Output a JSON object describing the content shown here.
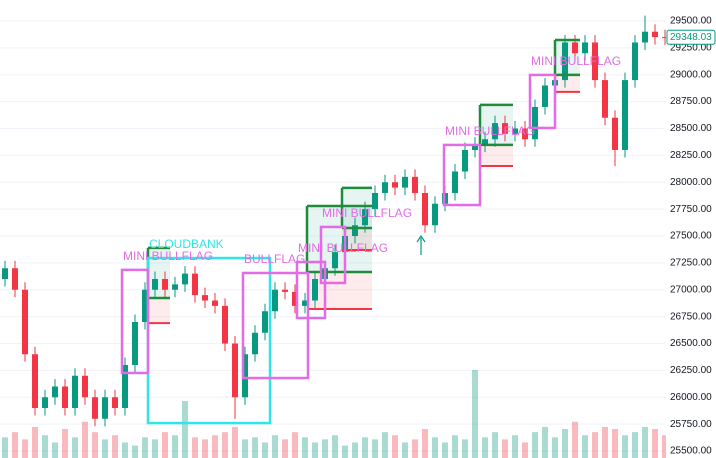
{
  "chart_data": {
    "type": "candlestick",
    "open": [
      27100,
      27200,
      27000,
      26400,
      25900,
      26000,
      26100,
      25900,
      26200,
      26000,
      25800,
      26000,
      25900,
      26300,
      26700,
      27000,
      27100,
      27000,
      27050,
      27150,
      26950,
      26900,
      26850,
      26500,
      26000,
      26400,
      26600,
      26800,
      27000,
      26980,
      26850,
      26900,
      27100,
      27200,
      27350,
      27500,
      27600,
      27750,
      27900,
      28000,
      27950,
      28050,
      27900,
      27600,
      27800,
      27900,
      28100,
      28300,
      28350,
      28400,
      28550,
      28450,
      28500,
      28400,
      28700,
      28900,
      28950,
      29300,
      29200,
      29300,
      28950,
      28600,
      28300,
      28950,
      29300,
      29400,
      29350
    ],
    "high": [
      27270,
      27270,
      27070,
      26470,
      26070,
      26170,
      26170,
      26270,
      26270,
      26070,
      26070,
      26070,
      26370,
      26770,
      27070,
      27170,
      27170,
      27120,
      27220,
      27220,
      27020,
      26970,
      26920,
      26570,
      26470,
      26670,
      26870,
      27070,
      27070,
      27050,
      26970,
      27170,
      27270,
      27420,
      27570,
      27670,
      27820,
      27970,
      28070,
      28070,
      28120,
      28120,
      27970,
      27870,
      27970,
      28170,
      28370,
      28420,
      28470,
      28620,
      28620,
      28570,
      28570,
      28770,
      28970,
      29020,
      29370,
      29370,
      29370,
      29370,
      29020,
      28670,
      29020,
      29370,
      29550,
      29470,
      29420
    ],
    "low": [
      27030,
      26930,
      26330,
      25830,
      25830,
      25930,
      25830,
      25830,
      25930,
      25730,
      25730,
      25830,
      25830,
      26230,
      26630,
      26930,
      26930,
      26930,
      26980,
      26880,
      26830,
      26780,
      26430,
      25800,
      25930,
      26330,
      26530,
      26730,
      26910,
      26780,
      26780,
      26830,
      27030,
      27130,
      27280,
      27430,
      27530,
      27680,
      27830,
      27880,
      27880,
      27830,
      27530,
      27530,
      27730,
      27830,
      28030,
      28230,
      28280,
      28330,
      28380,
      28380,
      28330,
      28330,
      28630,
      28830,
      28880,
      29130,
      29130,
      28880,
      28530,
      28150,
      28230,
      28880,
      29230,
      29280,
      29278
    ],
    "close": [
      27200,
      27000,
      26400,
      25900,
      26000,
      26100,
      25900,
      26200,
      26000,
      25800,
      26000,
      25900,
      26300,
      26700,
      27000,
      27100,
      27000,
      27050,
      27150,
      26950,
      26900,
      26850,
      26500,
      26000,
      26400,
      26600,
      26800,
      27000,
      26980,
      26850,
      26900,
      27100,
      27200,
      27350,
      27500,
      27600,
      27750,
      27900,
      28000,
      27950,
      28050,
      27900,
      27600,
      27800,
      27900,
      28100,
      28300,
      28350,
      28400,
      28550,
      28450,
      28500,
      28400,
      28700,
      28900,
      28950,
      29300,
      29200,
      29300,
      28950,
      28600,
      28300,
      28950,
      29300,
      29400,
      29350,
      29348.03
    ],
    "volume": [
      20,
      25,
      18,
      30,
      22,
      15,
      28,
      20,
      35,
      25,
      18,
      22,
      15,
      12,
      20,
      18,
      25,
      22,
      55,
      20,
      18,
      22,
      25,
      30,
      18,
      20,
      15,
      22,
      18,
      25,
      20,
      15,
      18,
      22,
      12,
      15,
      20,
      18,
      25,
      22,
      15,
      18,
      28,
      20,
      15,
      22,
      18,
      85,
      20,
      25,
      18,
      22,
      15,
      25,
      30,
      20,
      28,
      35,
      22,
      25,
      30,
      28,
      22,
      25,
      30,
      28,
      22
    ],
    "up_color": "#089981",
    "down_color": "#f23645",
    "last_price": 29348.03,
    "ylim": [
      25435,
      29695
    ],
    "yticks": [
      {
        "value": 25500,
        "label": "25500.00"
      },
      {
        "value": 25750,
        "label": "25750.00"
      },
      {
        "value": 26000,
        "label": "26000.00"
      },
      {
        "value": 26250,
        "label": "26250.00"
      },
      {
        "value": 26500,
        "label": "26500.00"
      },
      {
        "value": 26750,
        "label": "26750.00"
      },
      {
        "value": 27000,
        "label": "27000.00"
      },
      {
        "value": 27250,
        "label": "27250.00"
      },
      {
        "value": 27500,
        "label": "27500.00"
      },
      {
        "value": 27750,
        "label": "27750.00"
      },
      {
        "value": 28000,
        "label": "28000.00"
      },
      {
        "value": 28250,
        "label": "28250.00"
      },
      {
        "value": 28500,
        "label": "28500.00"
      },
      {
        "value": 28750,
        "label": "28750.00"
      },
      {
        "value": 29000,
        "label": "29000.00"
      },
      {
        "value": 29250,
        "label": "29250.00"
      },
      {
        "value": 29500,
        "label": "29500.00"
      }
    ],
    "grid": true,
    "boxes": [
      {
        "label": "CLOUDBANK",
        "color": "#2ee6e6",
        "from": 14.3,
        "to": 26.5,
        "top": 27295,
        "bottom": 25760
      },
      {
        "label": "MINI BULLFLAG",
        "color": "#e36be6",
        "from": 11.7,
        "to": 14.3,
        "top": 27185,
        "bottom": 26226
      },
      {
        "label": "BULLFLAG",
        "color": "#e36be6",
        "from": 23.8,
        "to": 30.3,
        "top": 27156,
        "bottom": 26179
      },
      {
        "label": "MINI BULLFLAG",
        "color": "#e36be6",
        "from": 29.2,
        "to": 32,
        "top": 27258,
        "bottom": 26737
      },
      {
        "label": "MINI BULLFLAG",
        "color": "#e36be6",
        "from": 31.6,
        "to": 34,
        "top": 27584,
        "bottom": 27063
      },
      {
        "label": "MINI BULLFLAG",
        "color": "#e36be6",
        "from": 43.9,
        "to": 47.5,
        "top": 28347,
        "bottom": 27788
      },
      {
        "label": "MINI BULLFLAG",
        "color": "#e36be6",
        "from": 52.5,
        "to": 55,
        "top": 28998,
        "bottom": 28505
      }
    ],
    "trades": [
      {
        "from": 14.3,
        "to": 16.5,
        "target": 27390,
        "entry": 26923,
        "stop": 26690
      },
      {
        "from": 30.2,
        "to": 36.7,
        "target": 27779,
        "entry": 27165,
        "stop": 26821
      },
      {
        "from": 33.7,
        "to": 36.7,
        "target": 27947,
        "entry": 27574,
        "stop": 27370
      },
      {
        "from": 47.5,
        "to": 50.8,
        "target": 28719,
        "entry": 28347,
        "stop": 28151
      },
      {
        "from": 55,
        "to": 57.5,
        "target": 29323,
        "entry": 28998,
        "stop": 28840
      }
    ]
  }
}
